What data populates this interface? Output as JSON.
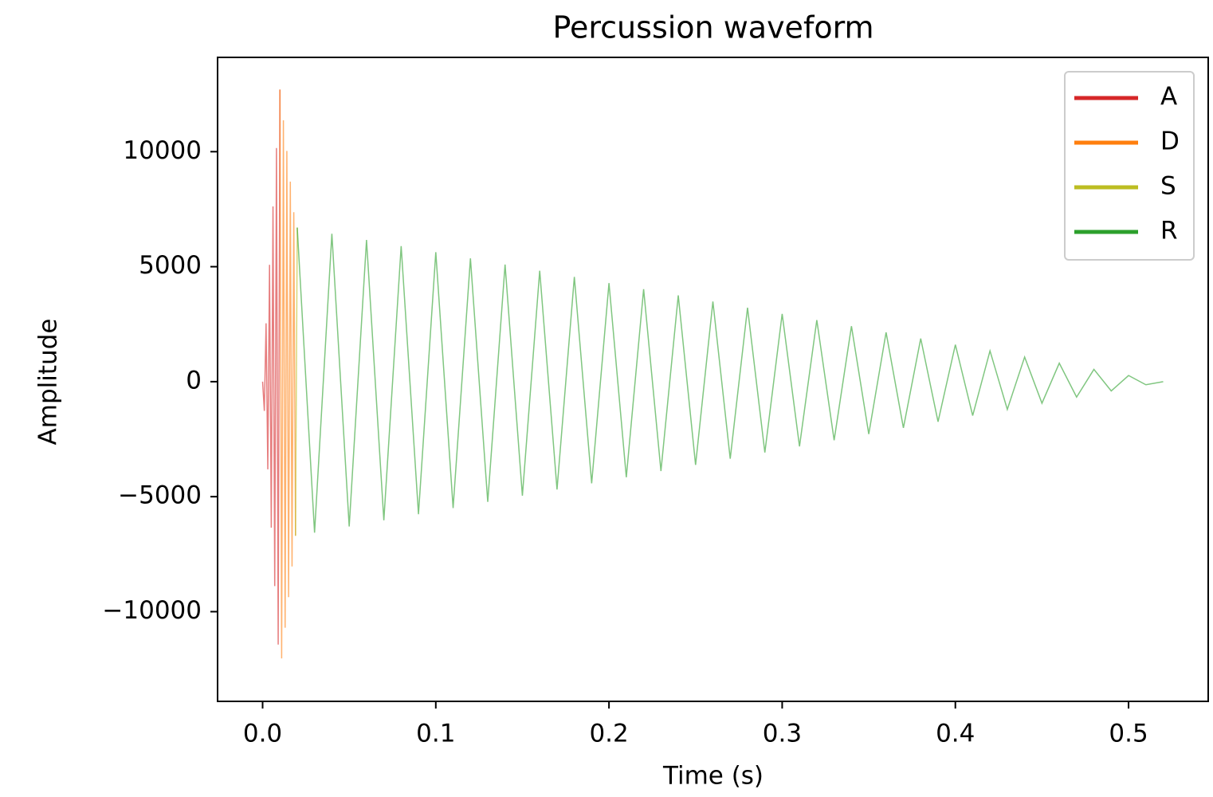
{
  "chart_data": {
    "type": "line",
    "title": "Percussion waveform",
    "x_label": "Time (s)",
    "y_label": "Amplitude",
    "xlim": [
      -0.026,
      0.546
    ],
    "ylim": [
      -13900,
      14100
    ],
    "xticks": [
      {
        "value": 0,
        "label": "0.0"
      },
      0.1,
      0.2,
      0.3,
      0.4,
      0.5
    ],
    "yticks": [
      {
        "value": -10000,
        "label": "−10000"
      },
      {
        "value": -5000,
        "label": "−5000"
      },
      0,
      5000,
      10000
    ],
    "grid": false,
    "legend": "upper right",
    "series": [
      {
        "name": "A",
        "color": "#d62728",
        "x": [
          0,
          0.001,
          0.002,
          0.003,
          0.004,
          0.005,
          0.006,
          0.007,
          0.008,
          0.009,
          0.01
        ],
        "values": [
          0,
          -1270,
          2540,
          -3810,
          5080,
          -6350,
          7620,
          -8890,
          10160,
          -11430,
          12700
        ]
      },
      {
        "name": "D",
        "color": "#ff7f0e",
        "x": [
          0.01,
          0.011,
          0.012,
          0.013,
          0.014,
          0.015,
          0.016,
          0.017,
          0.018,
          0.019
        ],
        "values": [
          12700,
          -12033,
          11367,
          -10700,
          10033,
          -9367,
          8700,
          -8033,
          7367,
          -6700
        ]
      },
      {
        "name": "S",
        "color": "#bcbd22",
        "x": [
          0.019,
          0.02
        ],
        "values": [
          -6700,
          6700
        ]
      },
      {
        "name": "R",
        "color": "#2ca02c",
        "x": [
          0.02,
          0.03,
          0.04,
          0.05,
          0.06,
          0.07,
          0.08,
          0.09,
          0.1,
          0.11,
          0.12,
          0.13,
          0.14,
          0.15,
          0.16,
          0.17,
          0.18,
          0.19,
          0.2,
          0.21,
          0.22,
          0.23,
          0.24,
          0.25,
          0.26,
          0.27,
          0.28,
          0.29,
          0.3,
          0.31,
          0.32,
          0.33,
          0.34,
          0.35,
          0.36,
          0.37,
          0.38,
          0.39,
          0.4,
          0.41,
          0.42,
          0.43,
          0.44,
          0.45,
          0.46,
          0.47,
          0.48,
          0.49,
          0.5,
          0.51,
          0.52
        ],
        "values": [
          6700,
          -6566,
          6432,
          -6298,
          6164,
          -6030,
          5896,
          -5762,
          5628,
          -5494,
          5360,
          -5226,
          5092,
          -4958,
          4824,
          -4690,
          4556,
          -4422,
          4288,
          -4154,
          4020,
          -3886,
          3752,
          -3618,
          3484,
          -3350,
          3216,
          -3082,
          2948,
          -2814,
          2680,
          -2546,
          2412,
          -2278,
          2144,
          -2010,
          1876,
          -1742,
          1608,
          -1474,
          1340,
          -1206,
          1072,
          -938,
          804,
          -670,
          536,
          -402,
          268,
          -134,
          0
        ]
      }
    ]
  }
}
